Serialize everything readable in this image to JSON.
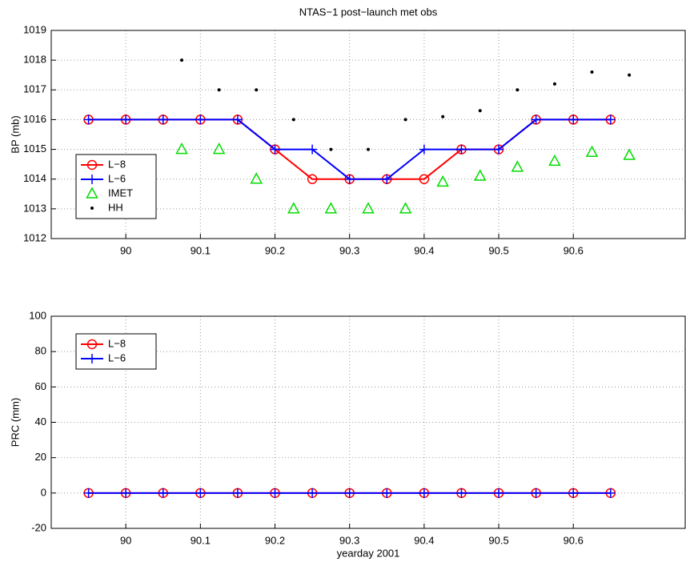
{
  "chart_data": [
    {
      "type": "line",
      "title": "NTAS−1 post−launch met obs",
      "ylabel": "BP (mb)",
      "xlim": [
        89.9,
        90.75
      ],
      "xticks": [
        90,
        90.1,
        90.2,
        90.3,
        90.4,
        90.5,
        90.6
      ],
      "ylim": [
        1012,
        1019
      ],
      "yticks": [
        1012,
        1013,
        1014,
        1015,
        1016,
        1017,
        1018,
        1019
      ],
      "grid": true,
      "legend": "west",
      "series": [
        {
          "name": "L−8",
          "color": "#ff0000",
          "marker": "o",
          "line": true,
          "x": [
            89.95,
            90.0,
            90.05,
            90.1,
            90.15,
            90.2,
            90.25,
            90.3,
            90.35,
            90.4,
            90.45,
            90.5,
            90.55,
            90.6,
            90.65
          ],
          "values": [
            1016,
            1016,
            1016,
            1016,
            1016,
            1015,
            1014,
            1014,
            1014,
            1014,
            1015,
            1015,
            1016,
            1016,
            1016
          ]
        },
        {
          "name": "L−6",
          "color": "#0000ff",
          "marker": "+",
          "line": true,
          "x": [
            89.95,
            90.0,
            90.05,
            90.1,
            90.15,
            90.2,
            90.25,
            90.3,
            90.35,
            90.4,
            90.45,
            90.5,
            90.55,
            90.6,
            90.65
          ],
          "values": [
            1016,
            1016,
            1016,
            1016,
            1016,
            1015,
            1015,
            1014,
            1014,
            1015,
            1015,
            1015,
            1016,
            1016,
            1016
          ]
        },
        {
          "name": "IMET",
          "color": "#00dd00",
          "marker": "^",
          "line": false,
          "x": [
            90.075,
            90.125,
            90.175,
            90.225,
            90.275,
            90.325,
            90.375,
            90.425,
            90.475,
            90.525,
            90.575,
            90.625,
            90.675
          ],
          "values": [
            1015,
            1015,
            1014,
            1013,
            1013,
            1013,
            1013,
            1013.9,
            1014.1,
            1014.4,
            1014.6,
            1014.9,
            1014.8
          ]
        },
        {
          "name": "HH",
          "color": "#000000",
          "marker": ".",
          "line": false,
          "x": [
            90.075,
            90.125,
            90.175,
            90.225,
            90.275,
            90.325,
            90.375,
            90.425,
            90.475,
            90.525,
            90.575,
            90.625,
            90.675
          ],
          "values": [
            1018,
            1017,
            1017,
            1016,
            1015,
            1015,
            1016,
            1016.1,
            1016.3,
            1017,
            1017.2,
            1017.6,
            1017.5
          ]
        }
      ]
    },
    {
      "type": "line",
      "ylabel": "PRC (mm)",
      "xlabel": "yearday 2001",
      "xlim": [
        89.9,
        90.75
      ],
      "xticks": [
        90,
        90.1,
        90.2,
        90.3,
        90.4,
        90.5,
        90.6
      ],
      "ylim": [
        -20,
        100
      ],
      "yticks": [
        -20,
        0,
        20,
        40,
        60,
        80,
        100
      ],
      "grid": true,
      "legend": "northwest",
      "series": [
        {
          "name": "L−8",
          "color": "#ff0000",
          "marker": "o",
          "line": true,
          "x": [
            89.95,
            90.0,
            90.05,
            90.1,
            90.15,
            90.2,
            90.25,
            90.3,
            90.35,
            90.4,
            90.45,
            90.5,
            90.55,
            90.6,
            90.65
          ],
          "values": [
            0,
            0,
            0,
            0,
            0,
            0,
            0,
            0,
            0,
            0,
            0,
            0,
            0,
            0,
            0
          ]
        },
        {
          "name": "L−6",
          "color": "#0000ff",
          "marker": "+",
          "line": true,
          "x": [
            89.95,
            90.0,
            90.05,
            90.1,
            90.15,
            90.2,
            90.25,
            90.3,
            90.35,
            90.4,
            90.45,
            90.5,
            90.55,
            90.6,
            90.65
          ],
          "values": [
            0,
            0,
            0,
            0,
            0,
            0,
            0,
            0,
            0,
            0,
            0,
            0,
            0,
            0,
            0
          ]
        }
      ]
    }
  ]
}
